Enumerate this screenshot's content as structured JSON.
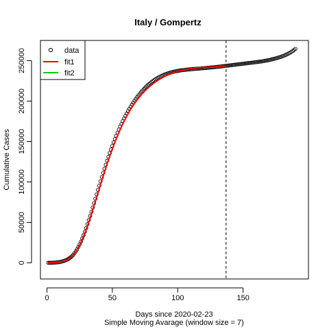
{
  "chart_data": {
    "type": "scatter",
    "title": "Italy / Gompertz",
    "xlabel": "Days since 2020-02-23",
    "sub_xlabel": "Simple Moving Avarage (window size = 7)",
    "ylabel": "Cumulative Cases",
    "xlim": [
      -5,
      200
    ],
    "ylim": [
      -20000,
      275000
    ],
    "xticks": [
      0,
      50,
      100,
      150
    ],
    "yticks": [
      0,
      50000,
      100000,
      150000,
      200000,
      250000
    ],
    "xtick_labels": [
      "0",
      "50",
      "100",
      "150"
    ],
    "ytick_labels": [
      "0",
      "50000",
      "100000",
      "150000",
      "200000",
      "250000"
    ],
    "vline": {
      "x": 137,
      "style": "dashed"
    },
    "legend": {
      "position": "top-left",
      "entries": [
        {
          "name": "data",
          "style": "circle",
          "color": "#000000"
        },
        {
          "name": "fit1",
          "style": "line",
          "color": "#ff0000"
        },
        {
          "name": "fit2",
          "style": "line",
          "color": "#00cd00"
        }
      ]
    },
    "series": [
      {
        "name": "data",
        "style": "points",
        "color": "#000000",
        "points": [
          [
            1,
            0
          ],
          [
            2,
            0
          ],
          [
            3,
            0
          ],
          [
            4,
            100
          ],
          [
            5,
            200
          ],
          [
            6,
            300
          ],
          [
            7,
            400
          ],
          [
            8,
            600
          ],
          [
            9,
            800
          ],
          [
            10,
            1100
          ],
          [
            11,
            1400
          ],
          [
            12,
            1800
          ],
          [
            13,
            2300
          ],
          [
            14,
            2900
          ],
          [
            15,
            3600
          ],
          [
            16,
            4400
          ],
          [
            17,
            5400
          ],
          [
            18,
            6600
          ],
          [
            19,
            8000
          ],
          [
            20,
            9700
          ],
          [
            21,
            11700
          ],
          [
            22,
            14000
          ],
          [
            23,
            16600
          ],
          [
            24,
            19500
          ],
          [
            25,
            22700
          ],
          [
            26,
            26200
          ],
          [
            27,
            30000
          ],
          [
            28,
            34100
          ],
          [
            29,
            38400
          ],
          [
            30,
            43000
          ],
          [
            31,
            47800
          ],
          [
            32,
            52800
          ],
          [
            33,
            57900
          ],
          [
            34,
            63100
          ],
          [
            35,
            68400
          ],
          [
            36,
            73800
          ],
          [
            37,
            79200
          ],
          [
            38,
            84600
          ],
          [
            39,
            90000
          ],
          [
            40,
            95400
          ],
          [
            41,
            100700
          ],
          [
            42,
            106000
          ],
          [
            43,
            111200
          ],
          [
            44,
            116300
          ],
          [
            45,
            121300
          ],
          [
            46,
            126200
          ],
          [
            47,
            131000
          ],
          [
            48,
            135700
          ],
          [
            49,
            140200
          ],
          [
            50,
            144600
          ],
          [
            51,
            148900
          ],
          [
            52,
            153000
          ],
          [
            53,
            157000
          ],
          [
            54,
            160900
          ],
          [
            55,
            164700
          ],
          [
            56,
            168300
          ],
          [
            57,
            171800
          ],
          [
            58,
            175200
          ],
          [
            59,
            178500
          ],
          [
            60,
            181600
          ],
          [
            61,
            184600
          ],
          [
            62,
            187500
          ],
          [
            63,
            190300
          ],
          [
            64,
            193000
          ],
          [
            65,
            195600
          ],
          [
            66,
            198100
          ],
          [
            67,
            200500
          ],
          [
            68,
            202800
          ],
          [
            69,
            205000
          ],
          [
            70,
            207100
          ],
          [
            71,
            209100
          ],
          [
            72,
            211000
          ],
          [
            73,
            212900
          ],
          [
            74,
            214700
          ],
          [
            75,
            216400
          ],
          [
            76,
            218000
          ],
          [
            77,
            219500
          ],
          [
            78,
            220900
          ],
          [
            79,
            222300
          ],
          [
            80,
            223600
          ],
          [
            81,
            224800
          ],
          [
            82,
            225900
          ],
          [
            83,
            227000
          ],
          [
            84,
            228000
          ],
          [
            85,
            228900
          ],
          [
            86,
            229800
          ],
          [
            87,
            230600
          ],
          [
            88,
            231400
          ],
          [
            89,
            232100
          ],
          [
            90,
            232800
          ],
          [
            91,
            233400
          ],
          [
            92,
            234000
          ],
          [
            93,
            234500
          ],
          [
            94,
            235000
          ],
          [
            95,
            235500
          ],
          [
            96,
            235900
          ],
          [
            97,
            236300
          ],
          [
            98,
            236700
          ],
          [
            99,
            237000
          ],
          [
            100,
            237300
          ],
          [
            101,
            237600
          ],
          [
            102,
            237900
          ],
          [
            103,
            238100
          ],
          [
            104,
            238300
          ],
          [
            105,
            238500
          ],
          [
            106,
            238700
          ],
          [
            107,
            238900
          ],
          [
            108,
            239100
          ],
          [
            109,
            239200
          ],
          [
            110,
            239400
          ],
          [
            111,
            239500
          ],
          [
            112,
            239700
          ],
          [
            113,
            239800
          ],
          [
            114,
            239900
          ],
          [
            115,
            240100
          ],
          [
            116,
            240200
          ],
          [
            117,
            240300
          ],
          [
            118,
            240500
          ],
          [
            119,
            240600
          ],
          [
            120,
            240700
          ],
          [
            121,
            240900
          ],
          [
            122,
            241000
          ],
          [
            123,
            241200
          ],
          [
            124,
            241300
          ],
          [
            125,
            241500
          ],
          [
            126,
            241600
          ],
          [
            127,
            241800
          ],
          [
            128,
            241900
          ],
          [
            129,
            242100
          ],
          [
            130,
            242300
          ],
          [
            131,
            242500
          ],
          [
            132,
            242600
          ],
          [
            133,
            242800
          ],
          [
            134,
            243000
          ],
          [
            135,
            243200
          ],
          [
            136,
            243400
          ],
          [
            137,
            243600
          ],
          [
            138,
            243800
          ],
          [
            139,
            244000
          ],
          [
            140,
            244200
          ],
          [
            141,
            244400
          ],
          [
            142,
            244600
          ],
          [
            143,
            244800
          ],
          [
            144,
            245000
          ],
          [
            145,
            245200
          ],
          [
            146,
            245400
          ],
          [
            147,
            245600
          ],
          [
            148,
            245800
          ],
          [
            149,
            246000
          ],
          [
            150,
            246200
          ],
          [
            151,
            246400
          ],
          [
            152,
            246600
          ],
          [
            153,
            246800
          ],
          [
            154,
            247000
          ],
          [
            155,
            247200
          ],
          [
            156,
            247400
          ],
          [
            157,
            247600
          ],
          [
            158,
            247800
          ],
          [
            159,
            248000
          ],
          [
            160,
            248200
          ],
          [
            161,
            248400
          ],
          [
            162,
            248600
          ],
          [
            163,
            248800
          ],
          [
            164,
            249000
          ],
          [
            165,
            249300
          ],
          [
            166,
            249600
          ],
          [
            167,
            249900
          ],
          [
            168,
            250200
          ],
          [
            169,
            250500
          ],
          [
            170,
            250800
          ],
          [
            171,
            251200
          ],
          [
            172,
            251600
          ],
          [
            173,
            252000
          ],
          [
            174,
            252400
          ],
          [
            175,
            252800
          ],
          [
            176,
            253300
          ],
          [
            177,
            253800
          ],
          [
            178,
            254300
          ],
          [
            179,
            254800
          ],
          [
            180,
            255400
          ],
          [
            181,
            256000
          ],
          [
            182,
            256700
          ],
          [
            183,
            257400
          ],
          [
            184,
            258200
          ],
          [
            185,
            259000
          ],
          [
            186,
            259900
          ],
          [
            187,
            260900
          ],
          [
            188,
            262000
          ],
          [
            189,
            263200
          ],
          [
            190,
            264500
          ]
        ]
      },
      {
        "name": "fit1",
        "style": "line",
        "color": "#ff0000",
        "points": [
          [
            1,
            100
          ],
          [
            5,
            300
          ],
          [
            10,
            1000
          ],
          [
            13,
            2200
          ],
          [
            16,
            4300
          ],
          [
            19,
            7900
          ],
          [
            22,
            13500
          ],
          [
            25,
            21800
          ],
          [
            28,
            32600
          ],
          [
            31,
            45600
          ],
          [
            34,
            60200
          ],
          [
            37,
            75700
          ],
          [
            40,
            91700
          ],
          [
            43,
            107400
          ],
          [
            46,
            122500
          ],
          [
            49,
            136500
          ],
          [
            52,
            149500
          ],
          [
            55,
            161300
          ],
          [
            58,
            171900
          ],
          [
            61,
            181400
          ],
          [
            64,
            189800
          ],
          [
            67,
            197200
          ],
          [
            70,
            203700
          ],
          [
            73,
            209400
          ],
          [
            76,
            214400
          ],
          [
            79,
            218800
          ],
          [
            82,
            222600
          ],
          [
            85,
            225900
          ],
          [
            88,
            228800
          ],
          [
            91,
            231200
          ],
          [
            94,
            233300
          ],
          [
            97,
            235100
          ],
          [
            100,
            236600
          ],
          [
            105,
            238700
          ],
          [
            110,
            240100
          ],
          [
            115,
            241100
          ],
          [
            120,
            241700
          ],
          [
            125,
            242100
          ],
          [
            130,
            242400
          ],
          [
            135,
            242600
          ],
          [
            137,
            242700
          ]
        ]
      }
    ]
  }
}
